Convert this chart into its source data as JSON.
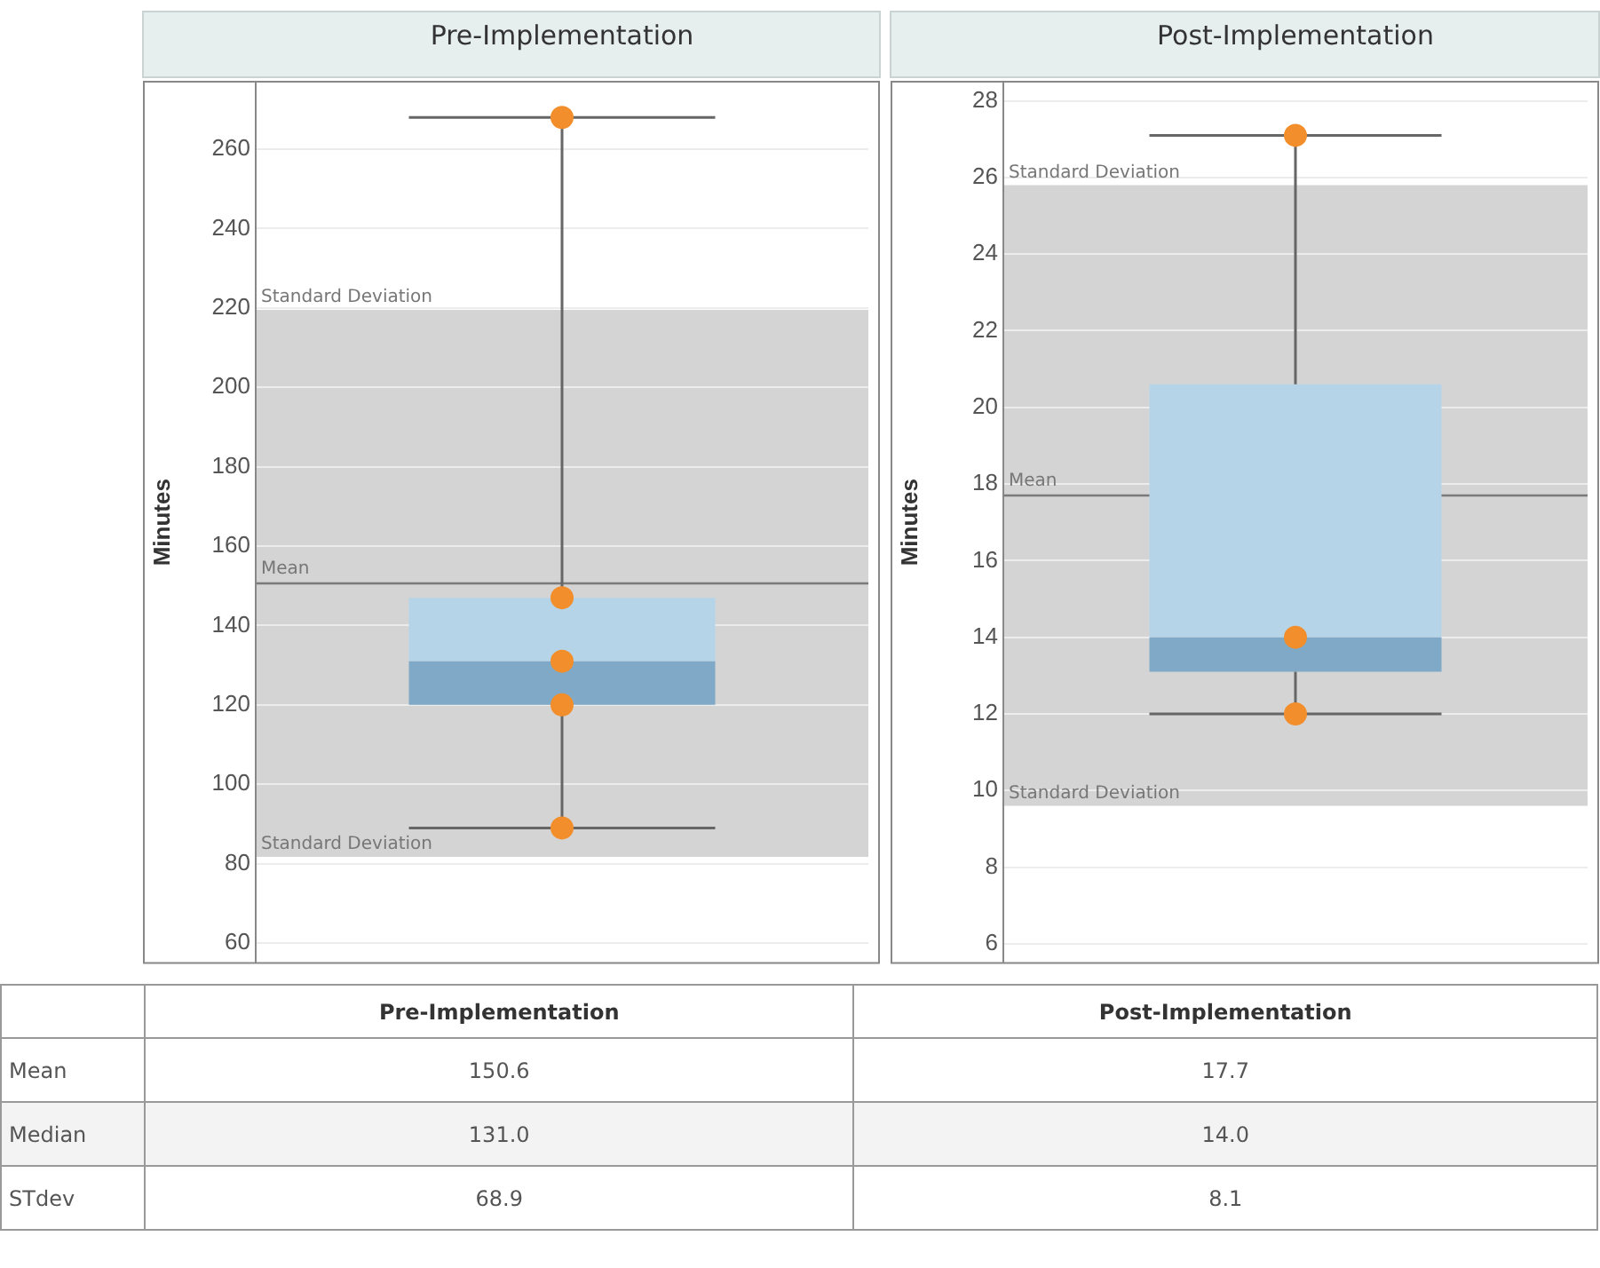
{
  "chart_data": [
    {
      "type": "box",
      "categories": [
        "Pre-Implementation"
      ],
      "ylabel": "Minutes",
      "ylim": [
        55,
        277
      ],
      "yticks": [
        60,
        80,
        100,
        120,
        140,
        160,
        180,
        200,
        220,
        240,
        260
      ],
      "grid": "y",
      "legend": false,
      "boxes": [
        {
          "low": 89,
          "q1": 120,
          "median": 131,
          "q3": 147,
          "high": 268
        }
      ],
      "series": [
        {
          "type": "scatter",
          "color": "#f28e2b",
          "x": [
            "Pre-Implementation",
            "Pre-Implementation",
            "Pre-Implementation",
            "Pre-Implementation",
            "Pre-Implementation"
          ],
          "values": [
            268,
            147,
            131,
            120,
            89
          ]
        }
      ],
      "ref_lines": [
        {
          "axis": "y",
          "value": 150.6,
          "label": "Mean",
          "color": "#7a7a7a"
        }
      ],
      "bands": [
        {
          "axis": "y",
          "from": 81.7,
          "to": 219.5,
          "label": "Standard Deviation",
          "color": "#d4d4d4"
        }
      ]
    },
    {
      "type": "box",
      "categories": [
        "Post-Implementation"
      ],
      "ylabel": "Minutes",
      "ylim": [
        5.5,
        28.5
      ],
      "yticks": [
        6,
        8,
        10,
        12,
        14,
        16,
        18,
        20,
        22,
        24,
        26,
        28
      ],
      "grid": "y",
      "legend": false,
      "boxes": [
        {
          "low": 12,
          "q1": 13.1,
          "median": 14,
          "q3": 20.6,
          "high": 27.1
        }
      ],
      "series": [
        {
          "type": "scatter",
          "color": "#f28e2b",
          "x": [
            "Post-Implementation",
            "Post-Implementation",
            "Post-Implementation"
          ],
          "values": [
            27.1,
            14,
            12
          ]
        }
      ],
      "ref_lines": [
        {
          "axis": "y",
          "value": 17.7,
          "label": "Mean",
          "color": "#7a7a7a"
        }
      ],
      "bands": [
        {
          "axis": "y",
          "from": 9.6,
          "to": 25.8,
          "label": "Standard Deviation",
          "color": "#d4d4d4"
        }
      ]
    },
    {
      "type": "other",
      "categories": [
        "Pre-Implementation",
        "Post-Implementation"
      ],
      "series": [
        {
          "name": "Mean",
          "values": [
            150.6,
            17.7
          ],
          "value_labels": [
            "150.6",
            "17.7"
          ]
        },
        {
          "name": "Median",
          "values": [
            131.0,
            14.0
          ],
          "value_labels": [
            "131.0",
            "14.0"
          ]
        },
        {
          "name": "STdev",
          "values": [
            68.9,
            8.1
          ],
          "value_labels": [
            "68.9",
            "8.1"
          ]
        }
      ]
    }
  ]
}
